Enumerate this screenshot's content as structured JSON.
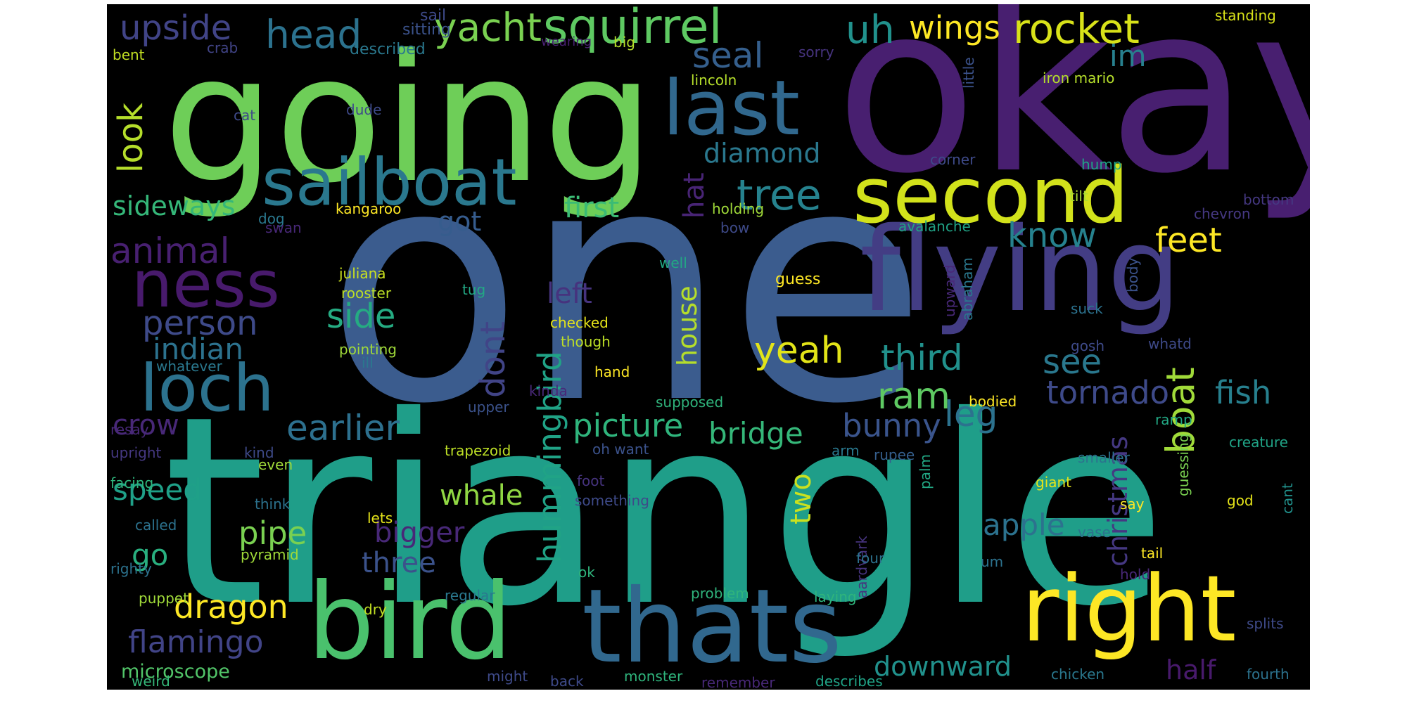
{
  "palette": [
    "#440154",
    "#482677",
    "#3e4a89",
    "#31688e",
    "#26828e",
    "#1f9e89",
    "#35b779",
    "#6ece58",
    "#b5de2b",
    "#fde725"
  ],
  "words": [
    {
      "text": "one",
      "color": "#3b5c8e"
    },
    {
      "text": "triangle",
      "color": "#1f9e89"
    },
    {
      "text": "okay",
      "color": "#481f70"
    },
    {
      "text": "going",
      "color": "#6ece58"
    },
    {
      "text": "flying",
      "color": "#433d84"
    },
    {
      "text": "bird",
      "color": "#4ac16d"
    },
    {
      "text": "thats",
      "color": "#31688e"
    },
    {
      "text": "right",
      "color": "#fde725"
    },
    {
      "text": "second",
      "color": "#d2e21b"
    },
    {
      "text": "sailboat",
      "color": "#2a788e"
    },
    {
      "text": "last",
      "color": "#31688e"
    },
    {
      "text": "loch",
      "color": "#2c728e"
    },
    {
      "text": "ness",
      "color": "#481a6c"
    },
    {
      "text": "squirrel",
      "color": "#5ec962"
    },
    {
      "text": "tree",
      "color": "#26828e"
    },
    {
      "text": "yacht",
      "color": "#7ad151"
    },
    {
      "text": "rocket",
      "color": "#d8e219"
    },
    {
      "text": "wings",
      "color": "#fde725"
    },
    {
      "text": "uh",
      "color": "#21918c"
    },
    {
      "text": "head",
      "color": "#2c728e"
    },
    {
      "text": "upside",
      "color": "#414487"
    },
    {
      "text": "seal",
      "color": "#355f8d"
    },
    {
      "text": "im",
      "color": "#27808e"
    },
    {
      "text": "look",
      "color": "#b5de2b"
    },
    {
      "text": "diamond",
      "color": "#2a788e"
    },
    {
      "text": "sideways",
      "color": "#35b779"
    },
    {
      "text": "hat",
      "color": "#482475"
    },
    {
      "text": "first",
      "color": "#3bbb75"
    },
    {
      "text": "animal",
      "color": "#482071"
    },
    {
      "text": "got",
      "color": "#365c8d"
    },
    {
      "text": "know",
      "color": "#26828e"
    },
    {
      "text": "feet",
      "color": "#fde725"
    },
    {
      "text": "person",
      "color": "#3e4a89"
    },
    {
      "text": "side",
      "color": "#25ab82"
    },
    {
      "text": "left",
      "color": "#46337e"
    },
    {
      "text": "indian",
      "color": "#2c728e"
    },
    {
      "text": "yeah",
      "color": "#e2e418"
    },
    {
      "text": "third",
      "color": "#21918c"
    },
    {
      "text": "see",
      "color": "#2a788e"
    },
    {
      "text": "house",
      "color": "#b5de2b"
    },
    {
      "text": "dont",
      "color": "#414487"
    },
    {
      "text": "hummingbird",
      "color": "#20a386"
    },
    {
      "text": "ram",
      "color": "#5ec962"
    },
    {
      "text": "leg",
      "color": "#2c728e"
    },
    {
      "text": "tornado",
      "color": "#3e4a89"
    },
    {
      "text": "boat",
      "color": "#a0da39"
    },
    {
      "text": "fish",
      "color": "#27808e"
    },
    {
      "text": "christmas",
      "color": "#453882"
    },
    {
      "text": "crow",
      "color": "#482878"
    },
    {
      "text": "earlier",
      "color": "#2d708e"
    },
    {
      "text": "picture",
      "color": "#2fb47c"
    },
    {
      "text": "bridge",
      "color": "#35b779"
    },
    {
      "text": "bunny",
      "color": "#3a548c"
    },
    {
      "text": "speed",
      "color": "#1fa088"
    },
    {
      "text": "whale",
      "color": "#90d743"
    },
    {
      "text": "two",
      "color": "#cae11f"
    },
    {
      "text": "apple",
      "color": "#2c728e"
    },
    {
      "text": "pipe",
      "color": "#7ad151"
    },
    {
      "text": "bigger",
      "color": "#482878"
    },
    {
      "text": "go",
      "color": "#29af7f"
    },
    {
      "text": "three",
      "color": "#3b528b"
    },
    {
      "text": "dragon",
      "color": "#fde725"
    },
    {
      "text": "flamingo",
      "color": "#414487"
    },
    {
      "text": "downward",
      "color": "#21918c"
    },
    {
      "text": "half",
      "color": "#481a6c"
    },
    {
      "text": "microscope",
      "color": "#52c569"
    },
    {
      "text": "sail",
      "color": "#3e4a89"
    },
    {
      "text": "sitting",
      "color": "#3b528b"
    },
    {
      "text": "crab",
      "color": "#414487"
    },
    {
      "text": "described",
      "color": "#2a788e"
    },
    {
      "text": "wearing",
      "color": "#482071"
    },
    {
      "text": "big",
      "color": "#b5de2b"
    },
    {
      "text": "sorry",
      "color": "#46337e"
    },
    {
      "text": "little",
      "color": "#3b528b"
    },
    {
      "text": "standing",
      "color": "#d8e219"
    },
    {
      "text": "bent",
      "color": "#c2df23"
    },
    {
      "text": "lincoln",
      "color": "#b5de2b"
    },
    {
      "text": "iron mario",
      "color": "#b5de2b"
    },
    {
      "text": "cat",
      "color": "#3e4a89"
    },
    {
      "text": "dude",
      "color": "#3e4a89"
    },
    {
      "text": "corner",
      "color": "#3e4a89"
    },
    {
      "text": "hump",
      "color": "#20a386"
    },
    {
      "text": "tilt",
      "color": "#a8db34"
    },
    {
      "text": "bottom",
      "color": "#453882"
    },
    {
      "text": "chevron",
      "color": "#453882"
    },
    {
      "text": "dog",
      "color": "#2a788e"
    },
    {
      "text": "kangaroo",
      "color": "#fde725"
    },
    {
      "text": "holding",
      "color": "#a0da39"
    },
    {
      "text": "swan",
      "color": "#482878"
    },
    {
      "text": "bow",
      "color": "#3e4a89"
    },
    {
      "text": "avalanche",
      "color": "#20a386"
    },
    {
      "text": "upward",
      "color": "#482878"
    },
    {
      "text": "abraham",
      "color": "#2a788e"
    },
    {
      "text": "juliana",
      "color": "#cae11f"
    },
    {
      "text": "rooster",
      "color": "#bddf26"
    },
    {
      "text": "tug",
      "color": "#22a884"
    },
    {
      "text": "well",
      "color": "#22a884"
    },
    {
      "text": "guess",
      "color": "#fde725"
    },
    {
      "text": "body",
      "color": "#3b528b"
    },
    {
      "text": "suck",
      "color": "#2c728e"
    },
    {
      "text": "checked",
      "color": "#e5e419"
    },
    {
      "text": "though",
      "color": "#bddf26"
    },
    {
      "text": "pointing",
      "color": "#a0da39"
    },
    {
      "text": "ill",
      "color": "#2a788e"
    },
    {
      "text": "whatever",
      "color": "#2a788e"
    },
    {
      "text": "gosh",
      "color": "#3e4a89"
    },
    {
      "text": "whatd",
      "color": "#3e4a89"
    },
    {
      "text": "hand",
      "color": "#fde725"
    },
    {
      "text": "supposed",
      "color": "#2fb47c"
    },
    {
      "text": "kinda",
      "color": "#482878"
    },
    {
      "text": "upper",
      "color": "#3b528b"
    },
    {
      "text": "bodied",
      "color": "#fde725"
    },
    {
      "text": "ramp",
      "color": "#22a884"
    },
    {
      "text": "resay",
      "color": "#482878"
    },
    {
      "text": "upright",
      "color": "#453882"
    },
    {
      "text": "oh want",
      "color": "#3b528b"
    },
    {
      "text": "trapezoid",
      "color": "#bddf26"
    },
    {
      "text": "kind",
      "color": "#3e4a89"
    },
    {
      "text": "arm",
      "color": "#2a788e"
    },
    {
      "text": "rupee",
      "color": "#355f8d"
    },
    {
      "text": "guessing",
      "color": "#7ad151"
    },
    {
      "text": "creature",
      "color": "#20a386"
    },
    {
      "text": "smaller",
      "color": "#2c728e"
    },
    {
      "text": "palm",
      "color": "#22a884"
    },
    {
      "text": "even",
      "color": "#a0da39"
    },
    {
      "text": "facing",
      "color": "#2fb47c"
    },
    {
      "text": "foot",
      "color": "#46337e"
    },
    {
      "text": "giant",
      "color": "#e5e419"
    },
    {
      "text": "think",
      "color": "#2c728e"
    },
    {
      "text": "something",
      "color": "#3e4a89"
    },
    {
      "text": "god",
      "color": "#e5e419"
    },
    {
      "text": "say",
      "color": "#fde725"
    },
    {
      "text": "cant",
      "color": "#21918c"
    },
    {
      "text": "called",
      "color": "#2c728e"
    },
    {
      "text": "lets",
      "color": "#e5e419"
    },
    {
      "text": "aardvark",
      "color": "#46337e"
    },
    {
      "text": "vase",
      "color": "#2c728e"
    },
    {
      "text": "pyramid",
      "color": "#a0da39"
    },
    {
      "text": "four",
      "color": "#2c728e"
    },
    {
      "text": "um",
      "color": "#2c728e"
    },
    {
      "text": "tail",
      "color": "#fde725"
    },
    {
      "text": "righty",
      "color": "#2c728e"
    },
    {
      "text": "ok",
      "color": "#2fb47c"
    },
    {
      "text": "hold",
      "color": "#482878"
    },
    {
      "text": "puppet",
      "color": "#a0da39"
    },
    {
      "text": "regular",
      "color": "#2a788e"
    },
    {
      "text": "problem",
      "color": "#2fb47c"
    },
    {
      "text": "laying",
      "color": "#2fb47c"
    },
    {
      "text": "dry",
      "color": "#c2df23"
    },
    {
      "text": "splits",
      "color": "#3e4a89"
    },
    {
      "text": "weird",
      "color": "#35b779"
    },
    {
      "text": "might",
      "color": "#3e4a89"
    },
    {
      "text": "back",
      "color": "#3e4a89"
    },
    {
      "text": "monster",
      "color": "#2fb47c"
    },
    {
      "text": "remember",
      "color": "#482878"
    },
    {
      "text": "describes",
      "color": "#20a386"
    },
    {
      "text": "chicken",
      "color": "#2a788e"
    },
    {
      "text": "fourth",
      "color": "#2c728e"
    }
  ]
}
